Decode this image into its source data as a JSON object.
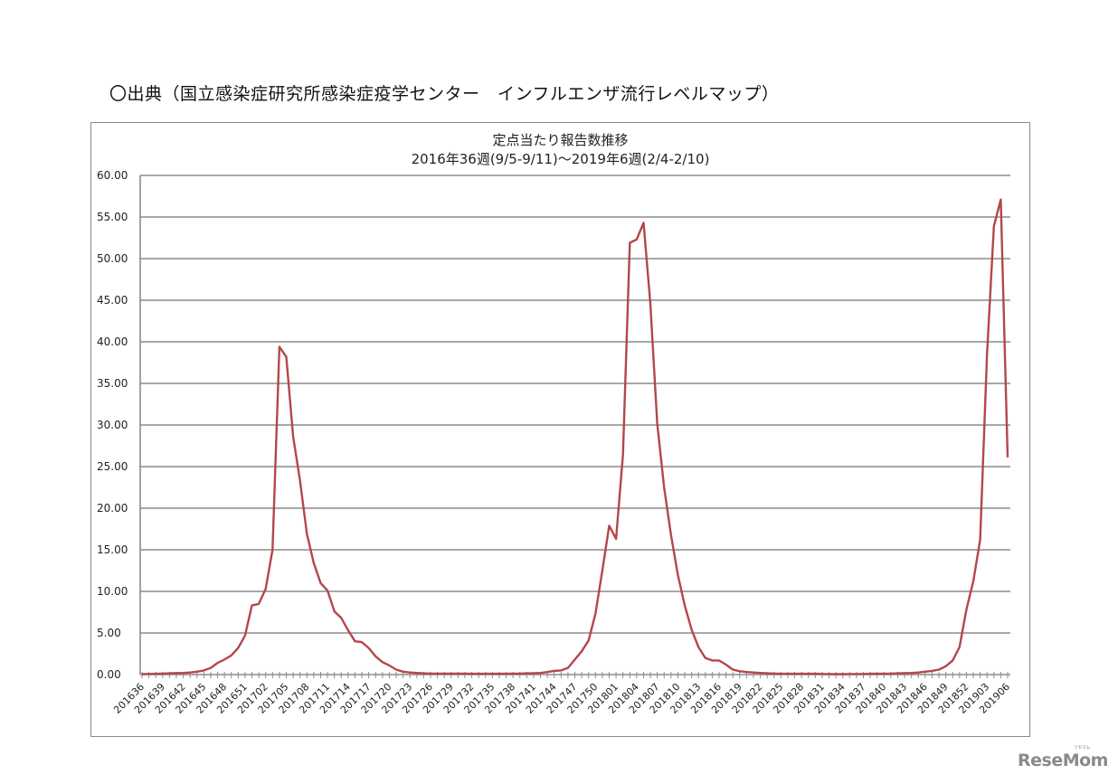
{
  "page": {
    "source_title": "〇出典（国立感染症研究所感染症疫学センター　インフルエンザ流行レベルマップ）",
    "logo": "ReseMom",
    "logo_ruby": "リセマム"
  },
  "chart_data": {
    "type": "line",
    "title": "定点当たり報告数推移",
    "subtitle": "2016年36週(9/5-9/11)〜2019年6週(2/4-2/10)",
    "xlabel": "",
    "ylabel": "",
    "ylim": [
      0,
      60
    ],
    "yticks": [
      "0.00",
      "5.00",
      "10.00",
      "15.00",
      "20.00",
      "25.00",
      "30.00",
      "35.00",
      "40.00",
      "45.00",
      "50.00",
      "55.00",
      "60.00"
    ],
    "grid": true,
    "legend": "none",
    "line_color": "#b3474a",
    "x_tick_labels": [
      "201636",
      "201639",
      "201642",
      "201645",
      "201648",
      "201651",
      "201702",
      "201705",
      "201708",
      "201711",
      "201714",
      "201717",
      "201720",
      "201723",
      "201726",
      "201729",
      "201732",
      "201735",
      "201738",
      "201741",
      "201744",
      "201747",
      "201750",
      "201801",
      "201804",
      "201807",
      "201810",
      "201813",
      "201816",
      "201819",
      "201822",
      "201825",
      "201828",
      "201831",
      "201834",
      "201837",
      "201840",
      "201843",
      "201846",
      "201849",
      "201852",
      "201903",
      "201906"
    ],
    "x": [
      "201636",
      "201637",
      "201638",
      "201639",
      "201640",
      "201641",
      "201642",
      "201643",
      "201644",
      "201645",
      "201646",
      "201647",
      "201648",
      "201649",
      "201650",
      "201651",
      "201652",
      "201701",
      "201702",
      "201703",
      "201704",
      "201705",
      "201706",
      "201707",
      "201708",
      "201709",
      "201710",
      "201711",
      "201712",
      "201713",
      "201714",
      "201715",
      "201716",
      "201717",
      "201718",
      "201719",
      "201720",
      "201721",
      "201722",
      "201723",
      "201724",
      "201725",
      "201726",
      "201727",
      "201728",
      "201729",
      "201730",
      "201731",
      "201732",
      "201733",
      "201734",
      "201735",
      "201736",
      "201737",
      "201738",
      "201739",
      "201740",
      "201741",
      "201742",
      "201743",
      "201744",
      "201745",
      "201746",
      "201747",
      "201748",
      "201749",
      "201750",
      "201751",
      "201752",
      "201801",
      "201802",
      "201803",
      "201804",
      "201805",
      "201806",
      "201807",
      "201808",
      "201809",
      "201810",
      "201811",
      "201812",
      "201813",
      "201814",
      "201815",
      "201816",
      "201817",
      "201818",
      "201819",
      "201820",
      "201821",
      "201822",
      "201823",
      "201824",
      "201825",
      "201826",
      "201827",
      "201828",
      "201829",
      "201830",
      "201831",
      "201832",
      "201833",
      "201834",
      "201835",
      "201836",
      "201837",
      "201838",
      "201839",
      "201840",
      "201841",
      "201842",
      "201843",
      "201844",
      "201845",
      "201846",
      "201847",
      "201848",
      "201849",
      "201850",
      "201851",
      "201852",
      "201901",
      "201902",
      "201903",
      "201904",
      "201905",
      "201906"
    ],
    "series": [
      {
        "name": "定点当たり報告数",
        "values": [
          0.05,
          0.08,
          0.1,
          0.12,
          0.15,
          0.18,
          0.2,
          0.25,
          0.35,
          0.5,
          0.8,
          1.4,
          1.8,
          2.3,
          3.2,
          4.7,
          8.3,
          8.5,
          10.3,
          15.0,
          39.4,
          38.2,
          28.6,
          23.3,
          16.9,
          13.4,
          11.0,
          10.1,
          7.6,
          6.8,
          5.3,
          4.0,
          3.9,
          3.2,
          2.2,
          1.5,
          1.1,
          0.6,
          0.35,
          0.25,
          0.2,
          0.15,
          0.12,
          0.12,
          0.12,
          0.12,
          0.12,
          0.12,
          0.1,
          0.1,
          0.1,
          0.1,
          0.1,
          0.1,
          0.12,
          0.12,
          0.15,
          0.15,
          0.2,
          0.3,
          0.45,
          0.5,
          0.8,
          1.8,
          2.8,
          4.1,
          7.3,
          12.5,
          17.9,
          16.3,
          26.4,
          51.9,
          52.3,
          54.3,
          44.6,
          30.2,
          22.5,
          16.8,
          12.0,
          8.3,
          5.4,
          3.3,
          2.0,
          1.7,
          1.7,
          1.2,
          0.6,
          0.4,
          0.3,
          0.25,
          0.2,
          0.15,
          0.12,
          0.1,
          0.1,
          0.1,
          0.1,
          0.1,
          0.1,
          0.08,
          0.06,
          0.05,
          0.05,
          0.06,
          0.07,
          0.08,
          0.1,
          0.1,
          0.1,
          0.12,
          0.15,
          0.17,
          0.2,
          0.25,
          0.35,
          0.45,
          0.6,
          1.0,
          1.7,
          3.3,
          7.8,
          11.2,
          16.2,
          38.5,
          53.9,
          57.1,
          26.1
        ]
      }
    ]
  }
}
